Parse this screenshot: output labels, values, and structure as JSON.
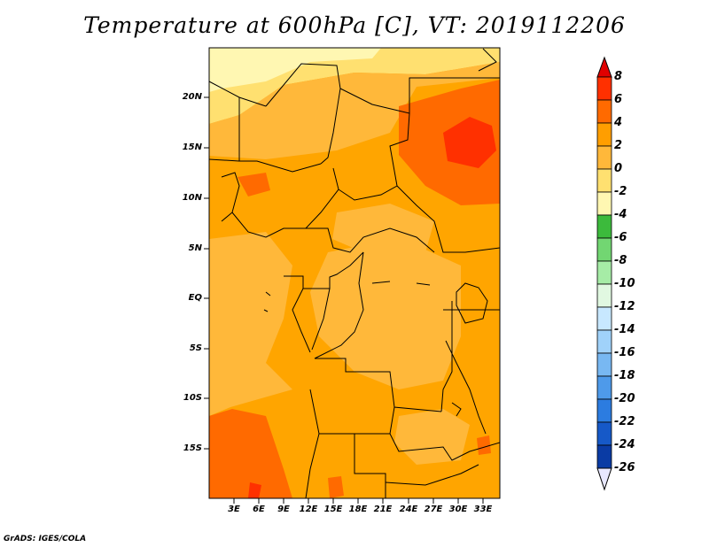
{
  "title": "Temperature at 600hPa [C], VT: 2019112206",
  "footer": "GrADS: IGES/COLA",
  "map": {
    "lat_labels": [
      "20N",
      "15N",
      "10N",
      "5N",
      "EQ",
      "5S",
      "10S",
      "15S"
    ],
    "lon_labels": [
      "3E",
      "6E",
      "9E",
      "12E",
      "15E",
      "18E",
      "21E",
      "24E",
      "27E",
      "30E",
      "33E"
    ]
  },
  "colorbar": {
    "labels": [
      "8",
      "6",
      "4",
      "2",
      "0",
      "-2",
      "-4",
      "-6",
      "-8",
      "-10",
      "-12",
      "-14",
      "-16",
      "-18",
      "-20",
      "-22",
      "-24",
      "-26"
    ],
    "colors": [
      "#e00000",
      "#ff3000",
      "#ff6a00",
      "#ff9e00",
      "#ffb83a",
      "#ffe070",
      "#fff7b2",
      "#3cba3c",
      "#72d672",
      "#a6eca6",
      "#e1f8e1",
      "#c8e8ff",
      "#a0d2fa",
      "#78b8f2",
      "#4e9aea",
      "#2c7ce0",
      "#1659c8",
      "#0a3ba4",
      "#0a1a78"
    ],
    "over_color": "#e00000",
    "under_color": "#e8e8ff"
  },
  "chart_data": {
    "type": "heatmap",
    "title": "Temperature at 600hPa [C], VT: 2019112206",
    "variable": "Temperature at 600hPa",
    "units": "C",
    "valid_time": "2019112206",
    "lon_range": [
      0,
      35
    ],
    "lat_range": [
      -20,
      24
    ],
    "levels": [
      -26,
      -24,
      -22,
      -20,
      -18,
      -16,
      -14,
      -12,
      -10,
      -8,
      -6,
      -4,
      -2,
      0,
      2,
      4,
      6,
      8
    ],
    "field_range": [
      -2,
      8
    ],
    "xlabel": "",
    "ylabel": ""
  }
}
